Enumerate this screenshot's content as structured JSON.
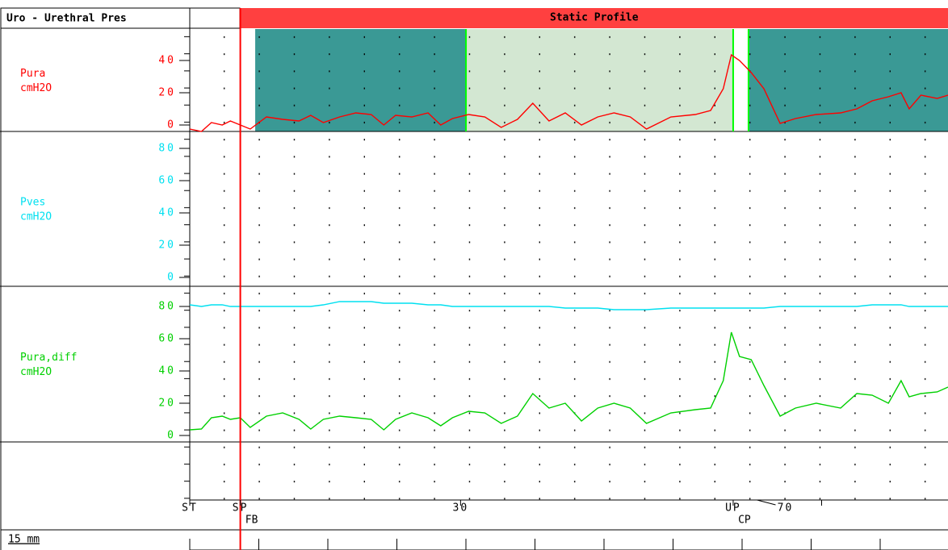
{
  "chart_data": {
    "type": "line",
    "title": "Uro - Urethral Pres",
    "header": "Static Profile",
    "x": [
      0,
      1.3,
      2.4,
      3.6,
      4.5,
      5.6,
      6.7,
      8.5,
      10.3,
      12.1,
      13.4,
      14.8,
      16.6,
      18.4,
      20.1,
      21.5,
      22.8,
      24.6,
      26.4,
      27.8,
      29.1,
      30.9,
      32.7,
      34.5,
      36.3,
      38.0,
      39.8,
      41.6,
      43.4,
      45.2,
      47.0,
      48.8,
      50.6,
      53.3,
      56.0,
      57.7,
      59.1,
      60.0,
      60.9,
      62.2,
      63.6,
      65.4,
      67.1,
      69.4,
      72.1,
      73.9,
      75.6,
      77.4,
      78.8,
      79.7,
      81.0,
      82.8,
      84
    ],
    "xlim": [
      0,
      84
    ],
    "xticks": [
      {
        "value": 0,
        "label": "ST"
      },
      {
        "value": 5.6,
        "label": "SP"
      },
      30,
      {
        "value": 60.2,
        "label": "UP"
      },
      70
    ],
    "sub_labels": [
      {
        "value": 5.6,
        "label": "FB"
      },
      {
        "value": 60.2,
        "label": "CP"
      }
    ],
    "cursor": {
      "value": 5.6,
      "color": "#ff0000"
    },
    "regions": [
      {
        "from": 7.25,
        "to": 30.6,
        "color": "#3a9995"
      },
      {
        "from": 30.6,
        "to": 60.2,
        "color": "#d3e7d2"
      },
      {
        "from": 61.9,
        "to": 84,
        "color": "#3a9995"
      }
    ],
    "boundaries": [
      30.6,
      60.2,
      61.9
    ],
    "panels": [
      {
        "ylabel": "Pura",
        "unit": "cmH2O",
        "color": "#ff0000",
        "ylim": [
          -4,
          59.5
        ],
        "yticks": [
          0,
          20,
          40
        ]
      },
      {
        "ylabel": "Pves",
        "unit": "cmH2O",
        "color": "#00e0f0",
        "ylim": [
          -5.5,
          90.5
        ],
        "yticks": [
          0,
          20,
          40,
          60,
          80
        ]
      },
      {
        "ylabel": "Pura,diff",
        "unit": "cmH2O",
        "color": "#00d000",
        "ylim": [
          -4,
          92.5
        ],
        "yticks": [
          0,
          20,
          40,
          60,
          80
        ]
      }
    ],
    "series": [
      {
        "panel": 0,
        "color": "#ff0000",
        "values": [
          -2.5,
          -4,
          1.5,
          0,
          2.5,
          0,
          -2.5,
          5,
          3.5,
          2.5,
          6,
          1.5,
          5,
          7.5,
          6.5,
          0,
          6,
          5,
          7.5,
          0,
          4,
          6.5,
          5,
          -1.5,
          3.5,
          13.5,
          2.5,
          7.5,
          0,
          5,
          7.5,
          5,
          -2.5,
          5,
          6.5,
          9,
          22.5,
          43.5,
          40,
          32.5,
          22.5,
          1,
          4,
          6.5,
          7.5,
          10,
          15,
          17.5,
          20,
          10,
          18.5,
          16.5,
          18.5
        ]
      },
      {
        "panel": 2,
        "color": "#00e0f0",
        "values": [
          81,
          80,
          81,
          81,
          80,
          80,
          80,
          80,
          80,
          80,
          80,
          81,
          83,
          83,
          83,
          82,
          82,
          82,
          81,
          81,
          80,
          80,
          80,
          80,
          80,
          80,
          80,
          79,
          79,
          79,
          78,
          78,
          78,
          79,
          79,
          79,
          79,
          79,
          79,
          79,
          79,
          80,
          80,
          80,
          80,
          80,
          81,
          81,
          81,
          80,
          80,
          80,
          80
        ]
      },
      {
        "panel": 2,
        "color": "#00d000",
        "values": [
          3.5,
          4,
          11,
          12,
          10,
          11,
          5,
          12,
          14,
          10,
          4,
          10,
          12,
          11,
          10,
          3.5,
          10,
          14,
          11,
          6,
          11,
          15,
          14,
          7.5,
          12,
          26,
          17,
          20,
          9,
          17,
          20,
          17,
          7.5,
          14,
          16,
          17,
          34,
          64,
          49,
          47,
          31,
          12,
          17,
          20,
          17,
          26,
          25,
          20,
          34,
          24,
          26,
          27,
          30
        ]
      }
    ],
    "scale_label": "15 mm"
  }
}
